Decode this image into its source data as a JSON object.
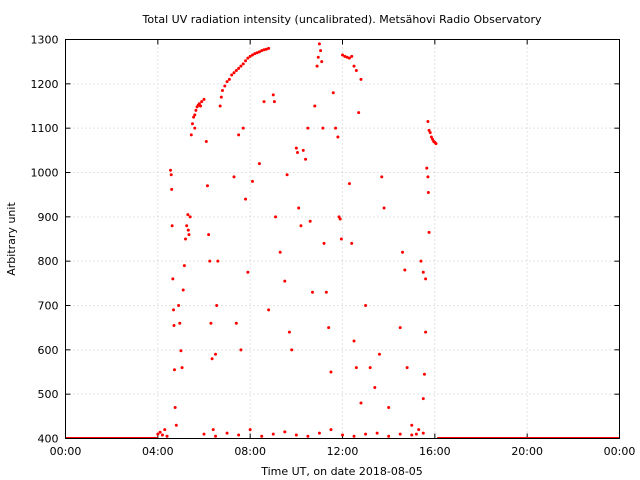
{
  "chart_data": {
    "type": "scatter",
    "title": "Total UV radiation intensity (uncalibrated). Metsähovi Radio Observatory",
    "xlabel": "Time UT, on date 2018-08-05",
    "ylabel": "Arbitrary unit",
    "xlim": [
      0,
      24
    ],
    "ylim": [
      400,
      1300
    ],
    "x_ticks": [
      0,
      4,
      8,
      12,
      16,
      20,
      24
    ],
    "x_tick_labels": [
      "00:00",
      "04:00",
      "08:00",
      "12:00",
      "16:00",
      "20:00",
      "00:00"
    ],
    "y_ticks": [
      400,
      500,
      600,
      700,
      800,
      900,
      1000,
      1100,
      1200,
      1300
    ],
    "y_tick_labels": [
      "400",
      "500",
      "600",
      "700",
      "800",
      "900",
      "1000",
      "1100",
      "1200",
      "1300"
    ],
    "grid": true,
    "marker_color": "#ff0000",
    "series": [
      {
        "points": [
          [
            4.0,
            410
          ],
          [
            4.1,
            414
          ],
          [
            4.2,
            408
          ],
          [
            4.3,
            420
          ],
          [
            4.4,
            405
          ],
          [
            4.55,
            1005
          ],
          [
            4.58,
            995
          ],
          [
            4.6,
            962
          ],
          [
            4.62,
            880
          ],
          [
            4.65,
            760
          ],
          [
            4.68,
            690
          ],
          [
            4.7,
            655
          ],
          [
            4.72,
            555
          ],
          [
            4.75,
            470
          ],
          [
            4.8,
            430
          ],
          [
            4.9,
            700
          ],
          [
            4.95,
            660
          ],
          [
            5.0,
            598
          ],
          [
            5.05,
            560
          ],
          [
            5.1,
            735
          ],
          [
            5.15,
            790
          ],
          [
            5.2,
            850
          ],
          [
            5.25,
            880
          ],
          [
            5.3,
            905
          ],
          [
            5.32,
            870
          ],
          [
            5.35,
            860
          ],
          [
            5.4,
            900
          ],
          [
            5.45,
            1085
          ],
          [
            5.5,
            1110
          ],
          [
            5.55,
            1125
          ],
          [
            5.6,
            1130
          ],
          [
            5.65,
            1140
          ],
          [
            5.7,
            1148
          ],
          [
            5.75,
            1152
          ],
          [
            5.8,
            1155
          ],
          [
            5.85,
            1150
          ],
          [
            5.9,
            1160
          ],
          [
            6.0,
            1165
          ],
          [
            5.6,
            1100
          ],
          [
            6.1,
            1070
          ],
          [
            6.15,
            970
          ],
          [
            6.2,
            860
          ],
          [
            6.25,
            800
          ],
          [
            6.3,
            660
          ],
          [
            6.35,
            580
          ],
          [
            6.4,
            420
          ],
          [
            6.5,
            590
          ],
          [
            6.55,
            700
          ],
          [
            6.6,
            800
          ],
          [
            6.7,
            1150
          ],
          [
            6.75,
            1170
          ],
          [
            6.8,
            1185
          ],
          [
            6.9,
            1195
          ],
          [
            7.0,
            1205
          ],
          [
            7.1,
            1210
          ],
          [
            7.2,
            1220
          ],
          [
            7.3,
            1225
          ],
          [
            7.4,
            1230
          ],
          [
            7.5,
            1235
          ],
          [
            7.6,
            1240
          ],
          [
            7.7,
            1245
          ],
          [
            7.8,
            1252
          ],
          [
            7.9,
            1258
          ],
          [
            8.0,
            1262
          ],
          [
            8.1,
            1265
          ],
          [
            8.2,
            1268
          ],
          [
            8.3,
            1270
          ],
          [
            8.4,
            1272
          ],
          [
            8.5,
            1275
          ],
          [
            8.6,
            1277
          ],
          [
            8.7,
            1278
          ],
          [
            8.8,
            1280
          ],
          [
            7.3,
            990
          ],
          [
            7.5,
            1085
          ],
          [
            7.7,
            1100
          ],
          [
            7.8,
            940
          ],
          [
            7.4,
            660
          ],
          [
            7.6,
            600
          ],
          [
            7.9,
            775
          ],
          [
            8.1,
            980
          ],
          [
            8.4,
            1020
          ],
          [
            8.6,
            1160
          ],
          [
            8.8,
            690
          ],
          [
            9.0,
            1175
          ],
          [
            9.05,
            1160
          ],
          [
            9.1,
            900
          ],
          [
            9.3,
            820
          ],
          [
            9.5,
            755
          ],
          [
            9.6,
            995
          ],
          [
            9.7,
            640
          ],
          [
            9.8,
            600
          ],
          [
            10.0,
            1055
          ],
          [
            10.05,
            1045
          ],
          [
            10.1,
            920
          ],
          [
            10.2,
            880
          ],
          [
            10.3,
            1050
          ],
          [
            10.4,
            1030
          ],
          [
            10.5,
            1100
          ],
          [
            10.6,
            890
          ],
          [
            10.7,
            730
          ],
          [
            10.8,
            1150
          ],
          [
            10.9,
            1240
          ],
          [
            10.95,
            1260
          ],
          [
            11.0,
            1290
          ],
          [
            11.05,
            1275
          ],
          [
            11.1,
            1250
          ],
          [
            11.15,
            1100
          ],
          [
            11.2,
            840
          ],
          [
            11.3,
            730
          ],
          [
            11.4,
            650
          ],
          [
            11.5,
            550
          ],
          [
            11.6,
            1180
          ],
          [
            11.7,
            1100
          ],
          [
            11.8,
            1080
          ],
          [
            11.85,
            900
          ],
          [
            11.9,
            895
          ],
          [
            11.95,
            850
          ],
          [
            12.0,
            1265
          ],
          [
            12.1,
            1262
          ],
          [
            12.2,
            1260
          ],
          [
            12.3,
            1258
          ],
          [
            12.4,
            1262
          ],
          [
            12.5,
            1240
          ],
          [
            12.6,
            1230
          ],
          [
            12.7,
            1135
          ],
          [
            12.8,
            1210
          ],
          [
            12.3,
            975
          ],
          [
            12.4,
            840
          ],
          [
            12.5,
            620
          ],
          [
            12.6,
            560
          ],
          [
            12.8,
            480
          ],
          [
            13.0,
            700
          ],
          [
            13.2,
            560
          ],
          [
            13.4,
            515
          ],
          [
            13.6,
            590
          ],
          [
            13.7,
            990
          ],
          [
            13.8,
            920
          ],
          [
            14.0,
            470
          ],
          [
            14.5,
            650
          ],
          [
            14.6,
            820
          ],
          [
            14.7,
            780
          ],
          [
            14.8,
            560
          ],
          [
            15.0,
            430
          ],
          [
            15.4,
            800
          ],
          [
            15.5,
            775
          ],
          [
            15.6,
            760
          ],
          [
            15.7,
            1115
          ],
          [
            15.75,
            1095
          ],
          [
            15.8,
            1090
          ],
          [
            15.85,
            1080
          ],
          [
            15.9,
            1075
          ],
          [
            15.95,
            1070
          ],
          [
            16.0,
            1068
          ],
          [
            16.05,
            1065
          ],
          [
            15.65,
            1010
          ],
          [
            15.7,
            990
          ],
          [
            15.72,
            955
          ],
          [
            15.75,
            865
          ],
          [
            15.5,
            490
          ],
          [
            15.55,
            545
          ],
          [
            15.6,
            640
          ],
          [
            15.3,
            420
          ],
          [
            15.2,
            410
          ],
          [
            6.0,
            410
          ],
          [
            6.5,
            405
          ],
          [
            7.0,
            412
          ],
          [
            7.5,
            408
          ],
          [
            8.0,
            420
          ],
          [
            8.5,
            405
          ],
          [
            9.0,
            410
          ],
          [
            9.5,
            415
          ],
          [
            10.0,
            408
          ],
          [
            10.5,
            405
          ],
          [
            11.0,
            412
          ],
          [
            11.5,
            420
          ],
          [
            12.0,
            408
          ],
          [
            12.5,
            405
          ],
          [
            13.0,
            410
          ],
          [
            13.5,
            412
          ],
          [
            14.0,
            405
          ],
          [
            14.5,
            410
          ],
          [
            15.0,
            408
          ],
          [
            15.5,
            412
          ]
        ]
      }
    ]
  }
}
